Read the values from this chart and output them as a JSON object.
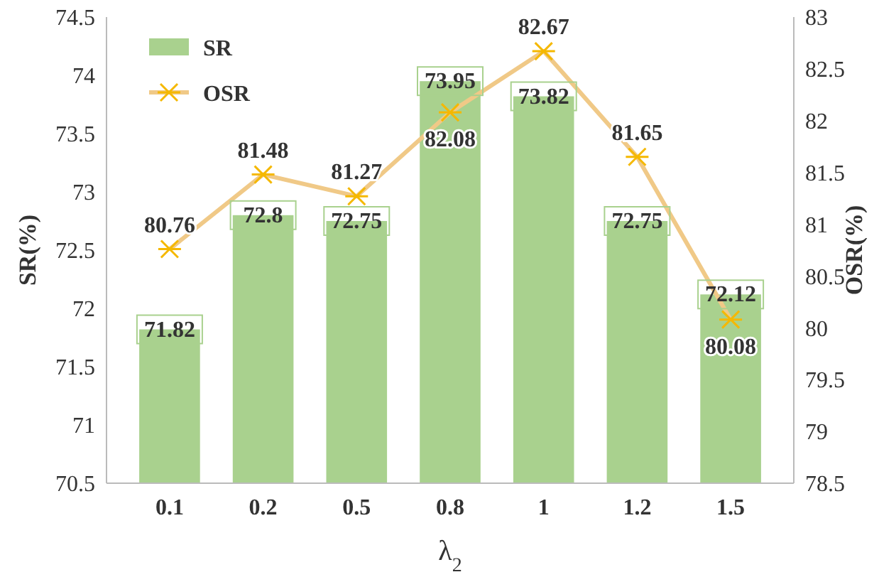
{
  "chart_data": {
    "type": "bar",
    "xlabel": "λ$_{2}$",
    "ylabel": "SR(%)",
    "y2label": "OSR(%)",
    "categories": [
      "0.1",
      "0.2",
      "0.5",
      "0.8",
      "1",
      "1.2",
      "1.5"
    ],
    "series": [
      {
        "name": "SR",
        "color": "#a9d18e",
        "values": [
          71.82,
          72.8,
          72.75,
          73.95,
          73.82,
          72.75,
          72.12
        ]
      },
      {
        "name": "OSR",
        "type": "line",
        "axis": "y2",
        "color": "#f0c987",
        "marker": "cross",
        "values": [
          80.76,
          81.48,
          81.27,
          82.08,
          82.67,
          81.65,
          80.08
        ]
      }
    ],
    "ylim": [
      70.5,
      74.5
    ],
    "yticks": [
      70.5,
      71,
      71.5,
      72,
      72.5,
      73,
      73.5,
      74,
      74.5
    ],
    "y2lim": [
      78.5,
      83
    ],
    "y2ticks": [
      78.5,
      79,
      79.5,
      80,
      80.5,
      81,
      81.5,
      82,
      82.5,
      83
    ],
    "data_labels": true,
    "legend": "top left",
    "grid": false
  }
}
